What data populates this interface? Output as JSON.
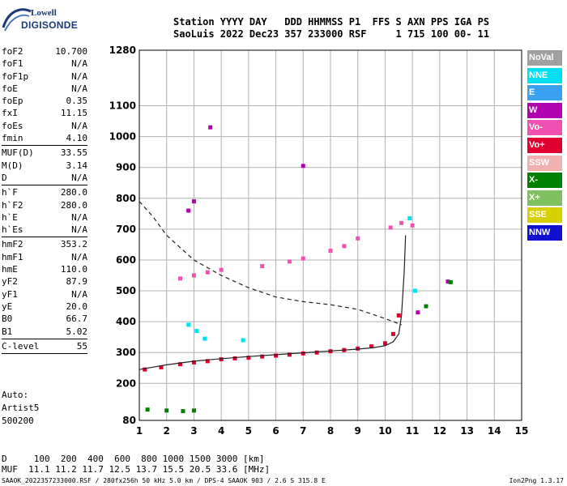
{
  "logo": {
    "line1": "Lowell",
    "line2": "DIGISONDE"
  },
  "header": {
    "line1": "Station YYYY DAY   DDD HHMMSS P1  FFS S AXN PPS IGA PS",
    "line2": "SaoLuis 2022 Dec23 357 233000 RSF     1 715 100 00- 11"
  },
  "params": [
    [
      {
        "label": "foF2",
        "value": "10.700"
      },
      {
        "label": "foF1",
        "value": "N/A"
      },
      {
        "label": "foF1p",
        "value": "N/A"
      },
      {
        "label": "foE",
        "value": "N/A"
      },
      {
        "label": "foEp",
        "value": "0.35"
      },
      {
        "label": "fxI",
        "value": "11.15"
      },
      {
        "label": "foEs",
        "value": "N/A"
      },
      {
        "label": "fmin",
        "value": "4.10"
      }
    ],
    [
      {
        "label": "MUF(D)",
        "value": "33.55"
      },
      {
        "label": "M(D)",
        "value": "3.14"
      },
      {
        "label": "D",
        "value": "N/A"
      }
    ],
    [
      {
        "label": "h`F",
        "value": "280.0"
      },
      {
        "label": "h`F2",
        "value": "280.0"
      },
      {
        "label": "h`E",
        "value": "N/A"
      },
      {
        "label": "h`Es",
        "value": "N/A"
      }
    ],
    [
      {
        "label": "hmF2",
        "value": "353.2"
      },
      {
        "label": "hmF1",
        "value": "N/A"
      },
      {
        "label": "hmE",
        "value": "110.0"
      },
      {
        "label": "yF2",
        "value": "87.9"
      },
      {
        "label": "yF1",
        "value": "N/A"
      },
      {
        "label": "yE",
        "value": "20.0"
      },
      {
        "label": "B0",
        "value": "66.7"
      },
      {
        "label": "B1",
        "value": "5.02"
      }
    ],
    [
      {
        "label": "C-level",
        "value": "55"
      }
    ]
  ],
  "auto": {
    "line1": "Auto:",
    "line2": "Artist5",
    "line3": "500200"
  },
  "legend": [
    {
      "label": "NoVal",
      "color": "#a0a0a0"
    },
    {
      "label": "NNE",
      "color": "#00e0f0"
    },
    {
      "label": "E",
      "color": "#3aa0f0"
    },
    {
      "label": "W",
      "color": "#b000b0"
    },
    {
      "label": "Vo-",
      "color": "#f050b0"
    },
    {
      "label": "Vo+",
      "color": "#e00030"
    },
    {
      "label": "SSW",
      "color": "#f0b0b0"
    },
    {
      "label": "X-",
      "color": "#008000"
    },
    {
      "label": "X+",
      "color": "#80c060"
    },
    {
      "label": "SSE",
      "color": "#d8d000"
    },
    {
      "label": "NNW",
      "color": "#1010d0"
    }
  ],
  "chart_data": {
    "type": "scatter",
    "title": "",
    "xlabel": "",
    "ylabel": "",
    "xlim": [
      1,
      15
    ],
    "ylim": [
      80,
      1280
    ],
    "x_ticks": [
      1,
      2,
      3,
      4,
      5,
      6,
      7,
      8,
      9,
      10,
      11,
      12,
      13,
      14,
      15
    ],
    "y_ticks": [
      80,
      200,
      300,
      400,
      500,
      600,
      700,
      800,
      900,
      1000,
      1100,
      1280
    ],
    "grid": true,
    "legend_position": "right",
    "series": [
      {
        "color": "#e00030",
        "points": [
          [
            1.2,
            245
          ],
          [
            1.8,
            252
          ],
          [
            2.5,
            262
          ],
          [
            3.0,
            268
          ],
          [
            3.5,
            272
          ],
          [
            4.0,
            278
          ],
          [
            4.5,
            281
          ],
          [
            5.0,
            283
          ],
          [
            5.5,
            287
          ],
          [
            6.0,
            290
          ],
          [
            6.5,
            293
          ],
          [
            7.0,
            297
          ],
          [
            7.5,
            300
          ],
          [
            8.0,
            304
          ],
          [
            8.5,
            308
          ],
          [
            9.0,
            313
          ],
          [
            9.5,
            320
          ],
          [
            10.0,
            330
          ],
          [
            10.3,
            360
          ],
          [
            10.5,
            420
          ]
        ]
      },
      {
        "color": "#f050b0",
        "points": [
          [
            2.5,
            540
          ],
          [
            3.0,
            550
          ],
          [
            3.5,
            560
          ],
          [
            4.0,
            568
          ],
          [
            5.5,
            580
          ],
          [
            6.5,
            595
          ],
          [
            7.0,
            605
          ],
          [
            8.0,
            630
          ],
          [
            8.5,
            645
          ],
          [
            9.0,
            670
          ],
          [
            10.2,
            705
          ],
          [
            10.6,
            720
          ],
          [
            11.0,
            712
          ]
        ]
      },
      {
        "color": "#b000b0",
        "points": [
          [
            2.8,
            760
          ],
          [
            3.0,
            790
          ],
          [
            3.6,
            1030
          ],
          [
            7.0,
            905
          ],
          [
            12.3,
            530
          ],
          [
            11.2,
            430
          ]
        ]
      },
      {
        "color": "#00e0f0",
        "points": [
          [
            2.8,
            390
          ],
          [
            3.1,
            370
          ],
          [
            3.4,
            345
          ],
          [
            4.8,
            340
          ],
          [
            11.1,
            500
          ],
          [
            10.9,
            735
          ]
        ]
      },
      {
        "color": "#008000",
        "points": [
          [
            1.3,
            115
          ],
          [
            2.0,
            112
          ],
          [
            2.6,
            110
          ],
          [
            3.0,
            112
          ],
          [
            11.5,
            450
          ],
          [
            12.4,
            528
          ]
        ]
      }
    ],
    "annotations": [
      {
        "type": "dashed-curve",
        "points": [
          [
            1,
            790
          ],
          [
            1.5,
            740
          ],
          [
            2,
            680
          ],
          [
            3,
            600
          ],
          [
            4,
            550
          ],
          [
            5,
            510
          ],
          [
            6,
            480
          ],
          [
            7,
            465
          ],
          [
            8,
            455
          ],
          [
            9,
            440
          ],
          [
            10,
            410
          ],
          [
            10.6,
            390
          ]
        ]
      },
      {
        "type": "solid-curve",
        "points": [
          [
            1,
            245
          ],
          [
            2,
            260
          ],
          [
            3,
            272
          ],
          [
            4,
            280
          ],
          [
            5,
            287
          ],
          [
            6,
            293
          ],
          [
            7,
            299
          ],
          [
            8,
            305
          ],
          [
            9,
            311
          ],
          [
            9.6,
            316
          ],
          [
            10,
            322
          ],
          [
            10.3,
            335
          ],
          [
            10.5,
            360
          ],
          [
            10.6,
            420
          ],
          [
            10.7,
            560
          ],
          [
            10.75,
            680
          ]
        ]
      }
    ]
  },
  "footer": {
    "line1": "D     100  200  400  600  800 1000 1500 3000 [km]",
    "line2": "MUF  11.1 11.2 11.7 12.5 13.7 15.5 20.5 33.6 [MHz]",
    "line3": "SAAOK_2022357233000.RSF / 280fx256h 50 kHz 5.0 km / DPS-4 SAAOK 903 / 2.6 S 315.8 E",
    "line4": "Ion2Png 1.3.17"
  }
}
